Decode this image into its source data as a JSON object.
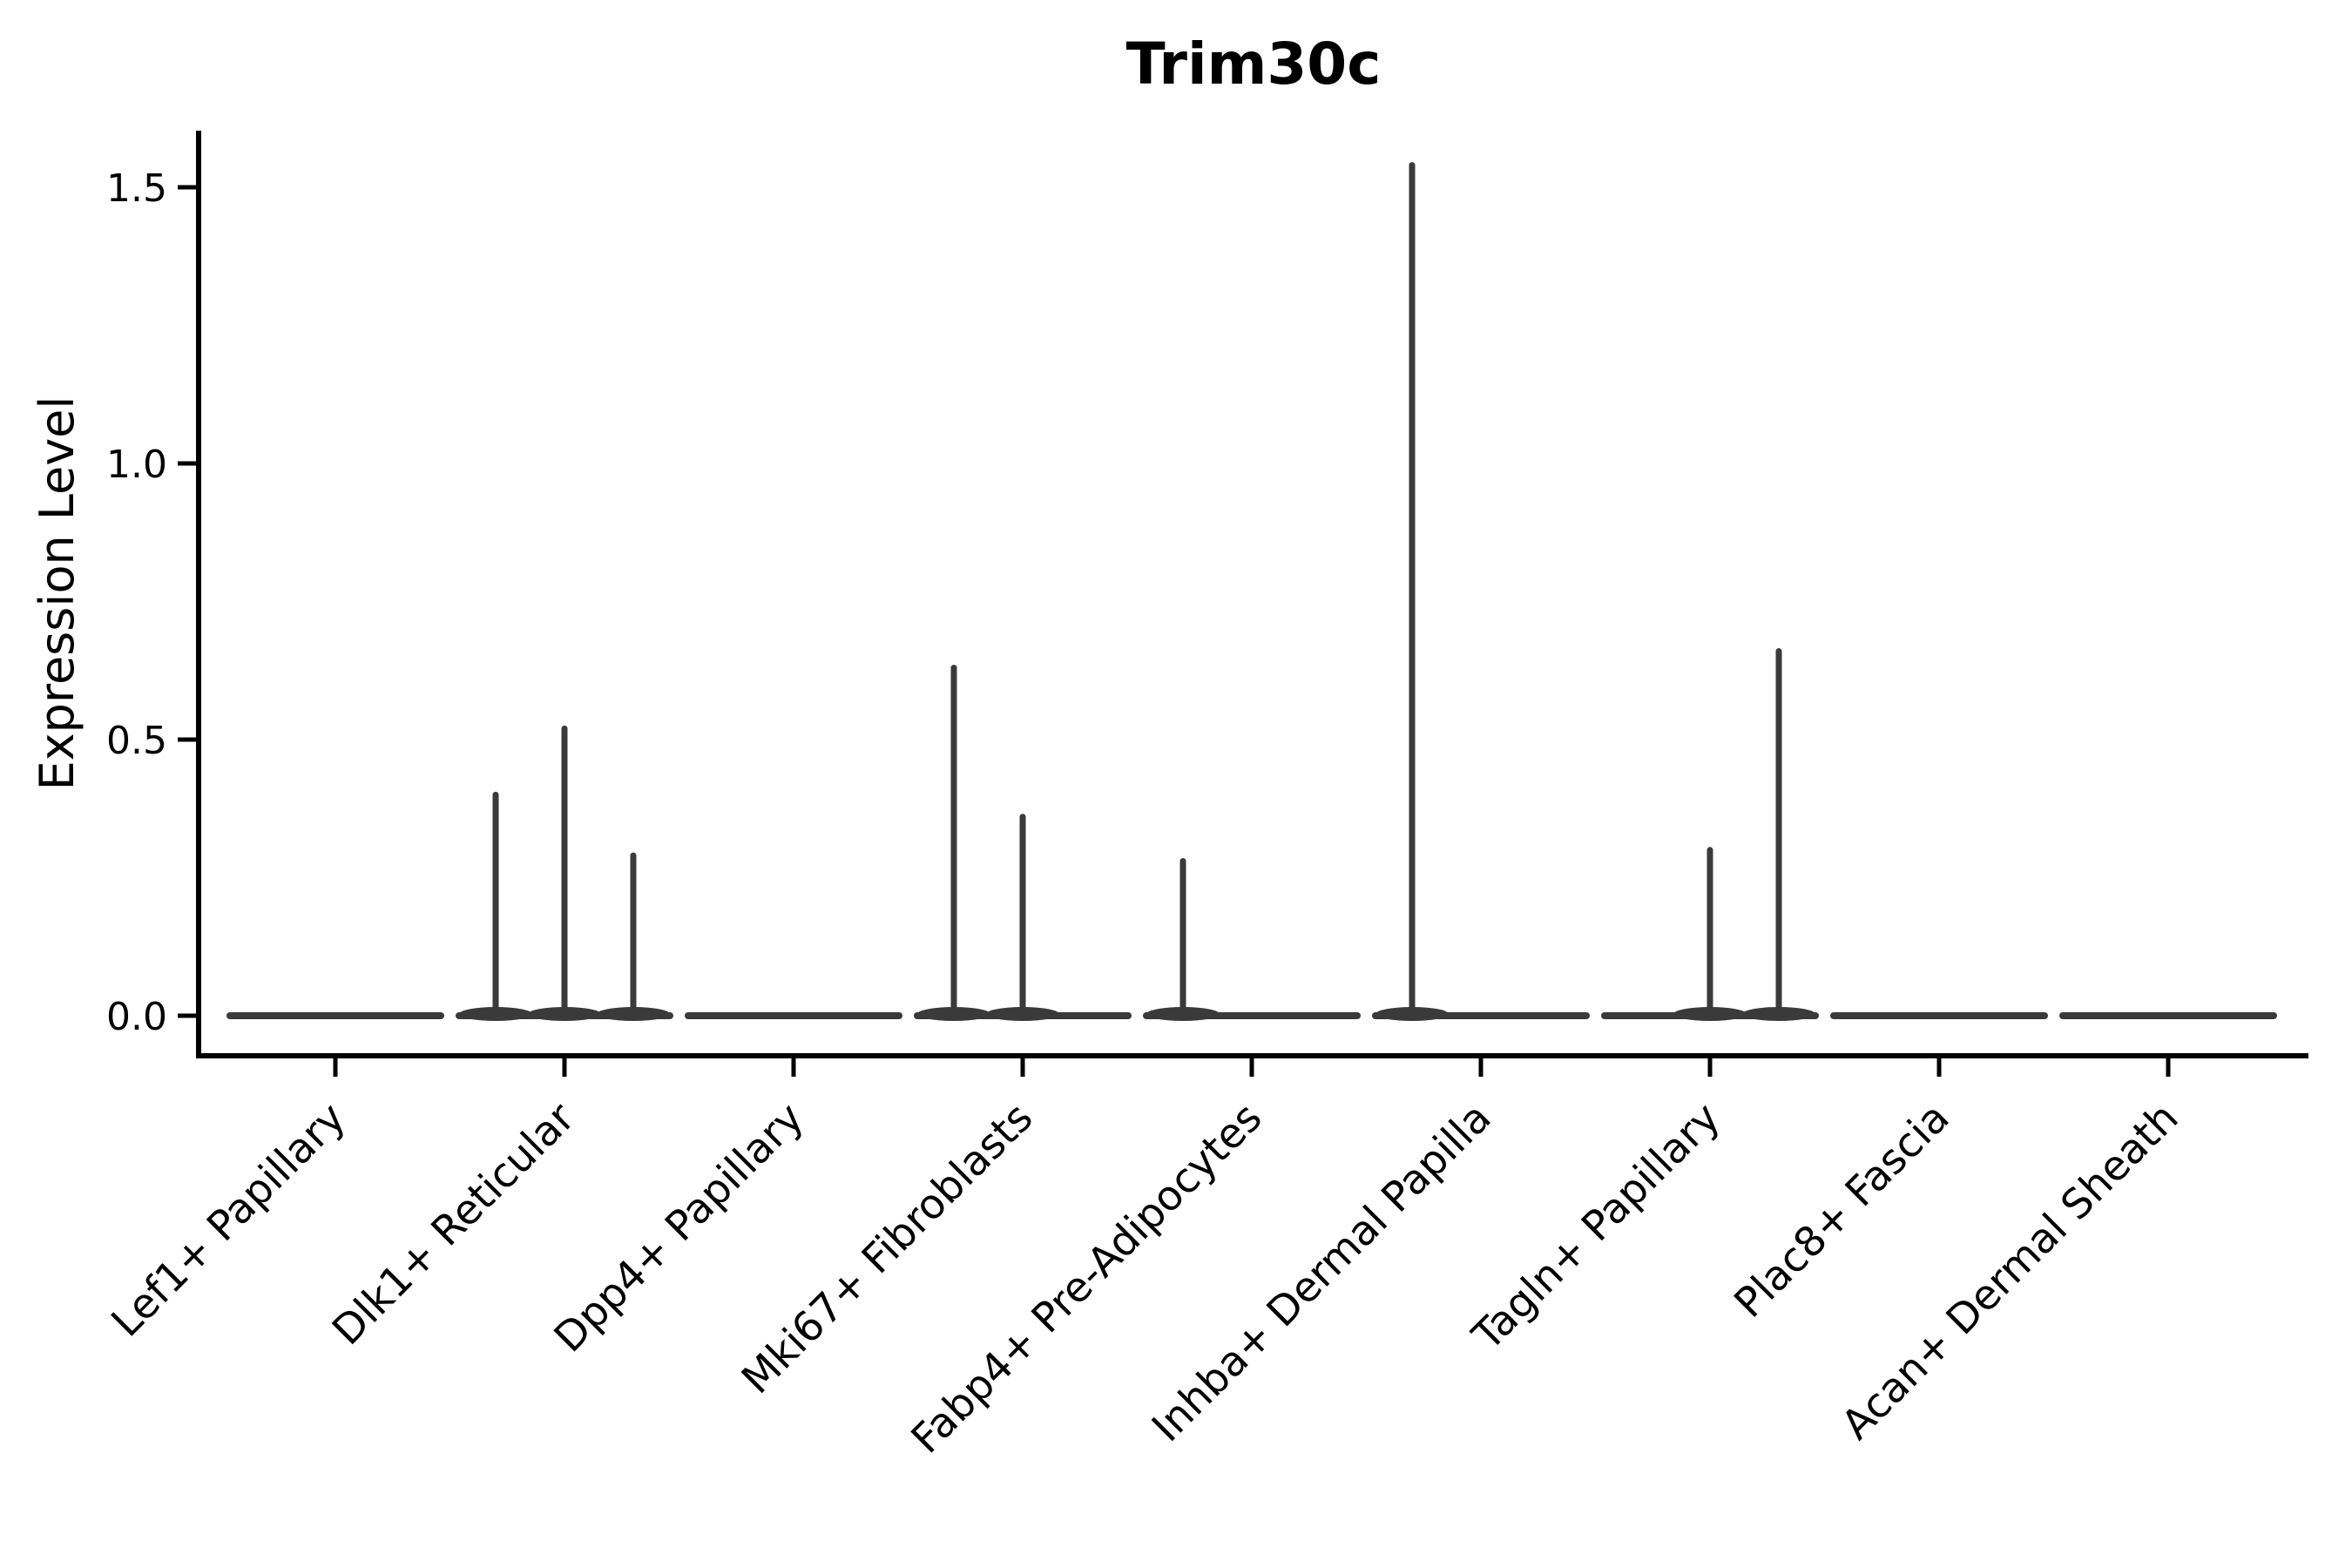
{
  "chart_data": {
    "type": "violin",
    "title": "Trim30c",
    "ylabel": "Expression Level",
    "xlabel": "",
    "ytick_labels": [
      "0.0",
      "0.5",
      "1.0",
      "1.5"
    ],
    "ytick_values": [
      0,
      0.5,
      1.0,
      1.5
    ],
    "ylim": [
      -0.07,
      1.6
    ],
    "grid": false,
    "legend_position": "none",
    "categories": [
      "Lef1+ Papillary",
      "Dlk1+ Reticular",
      "Dpp4+ Papillary",
      "Mki67+ Fibroblasts",
      "Fabp4+ Pre-Adipocytes",
      "Inhba+ Dermal Papilla",
      "Tagln+ Papillary",
      "Plac8+ Fascia",
      "Acan+ Dermal Sheath"
    ],
    "sub_positions": [
      "left",
      "center",
      "right"
    ],
    "baseline_value": 0,
    "spike_maxima": [
      [
        0,
        0,
        0
      ],
      [
        0.4,
        0.52,
        0.29
      ],
      [
        0,
        0,
        0
      ],
      [
        0.63,
        0.36,
        0
      ],
      [
        0.28,
        0,
        0
      ],
      [
        1.54,
        0,
        0
      ],
      [
        0,
        0.3,
        0.66
      ],
      [
        0,
        0,
        0
      ],
      [
        0,
        0,
        0
      ]
    ],
    "colors": {
      "violin": "#3a3a3a",
      "axis": "#000000",
      "text": "#000000",
      "background": "#ffffff"
    }
  }
}
